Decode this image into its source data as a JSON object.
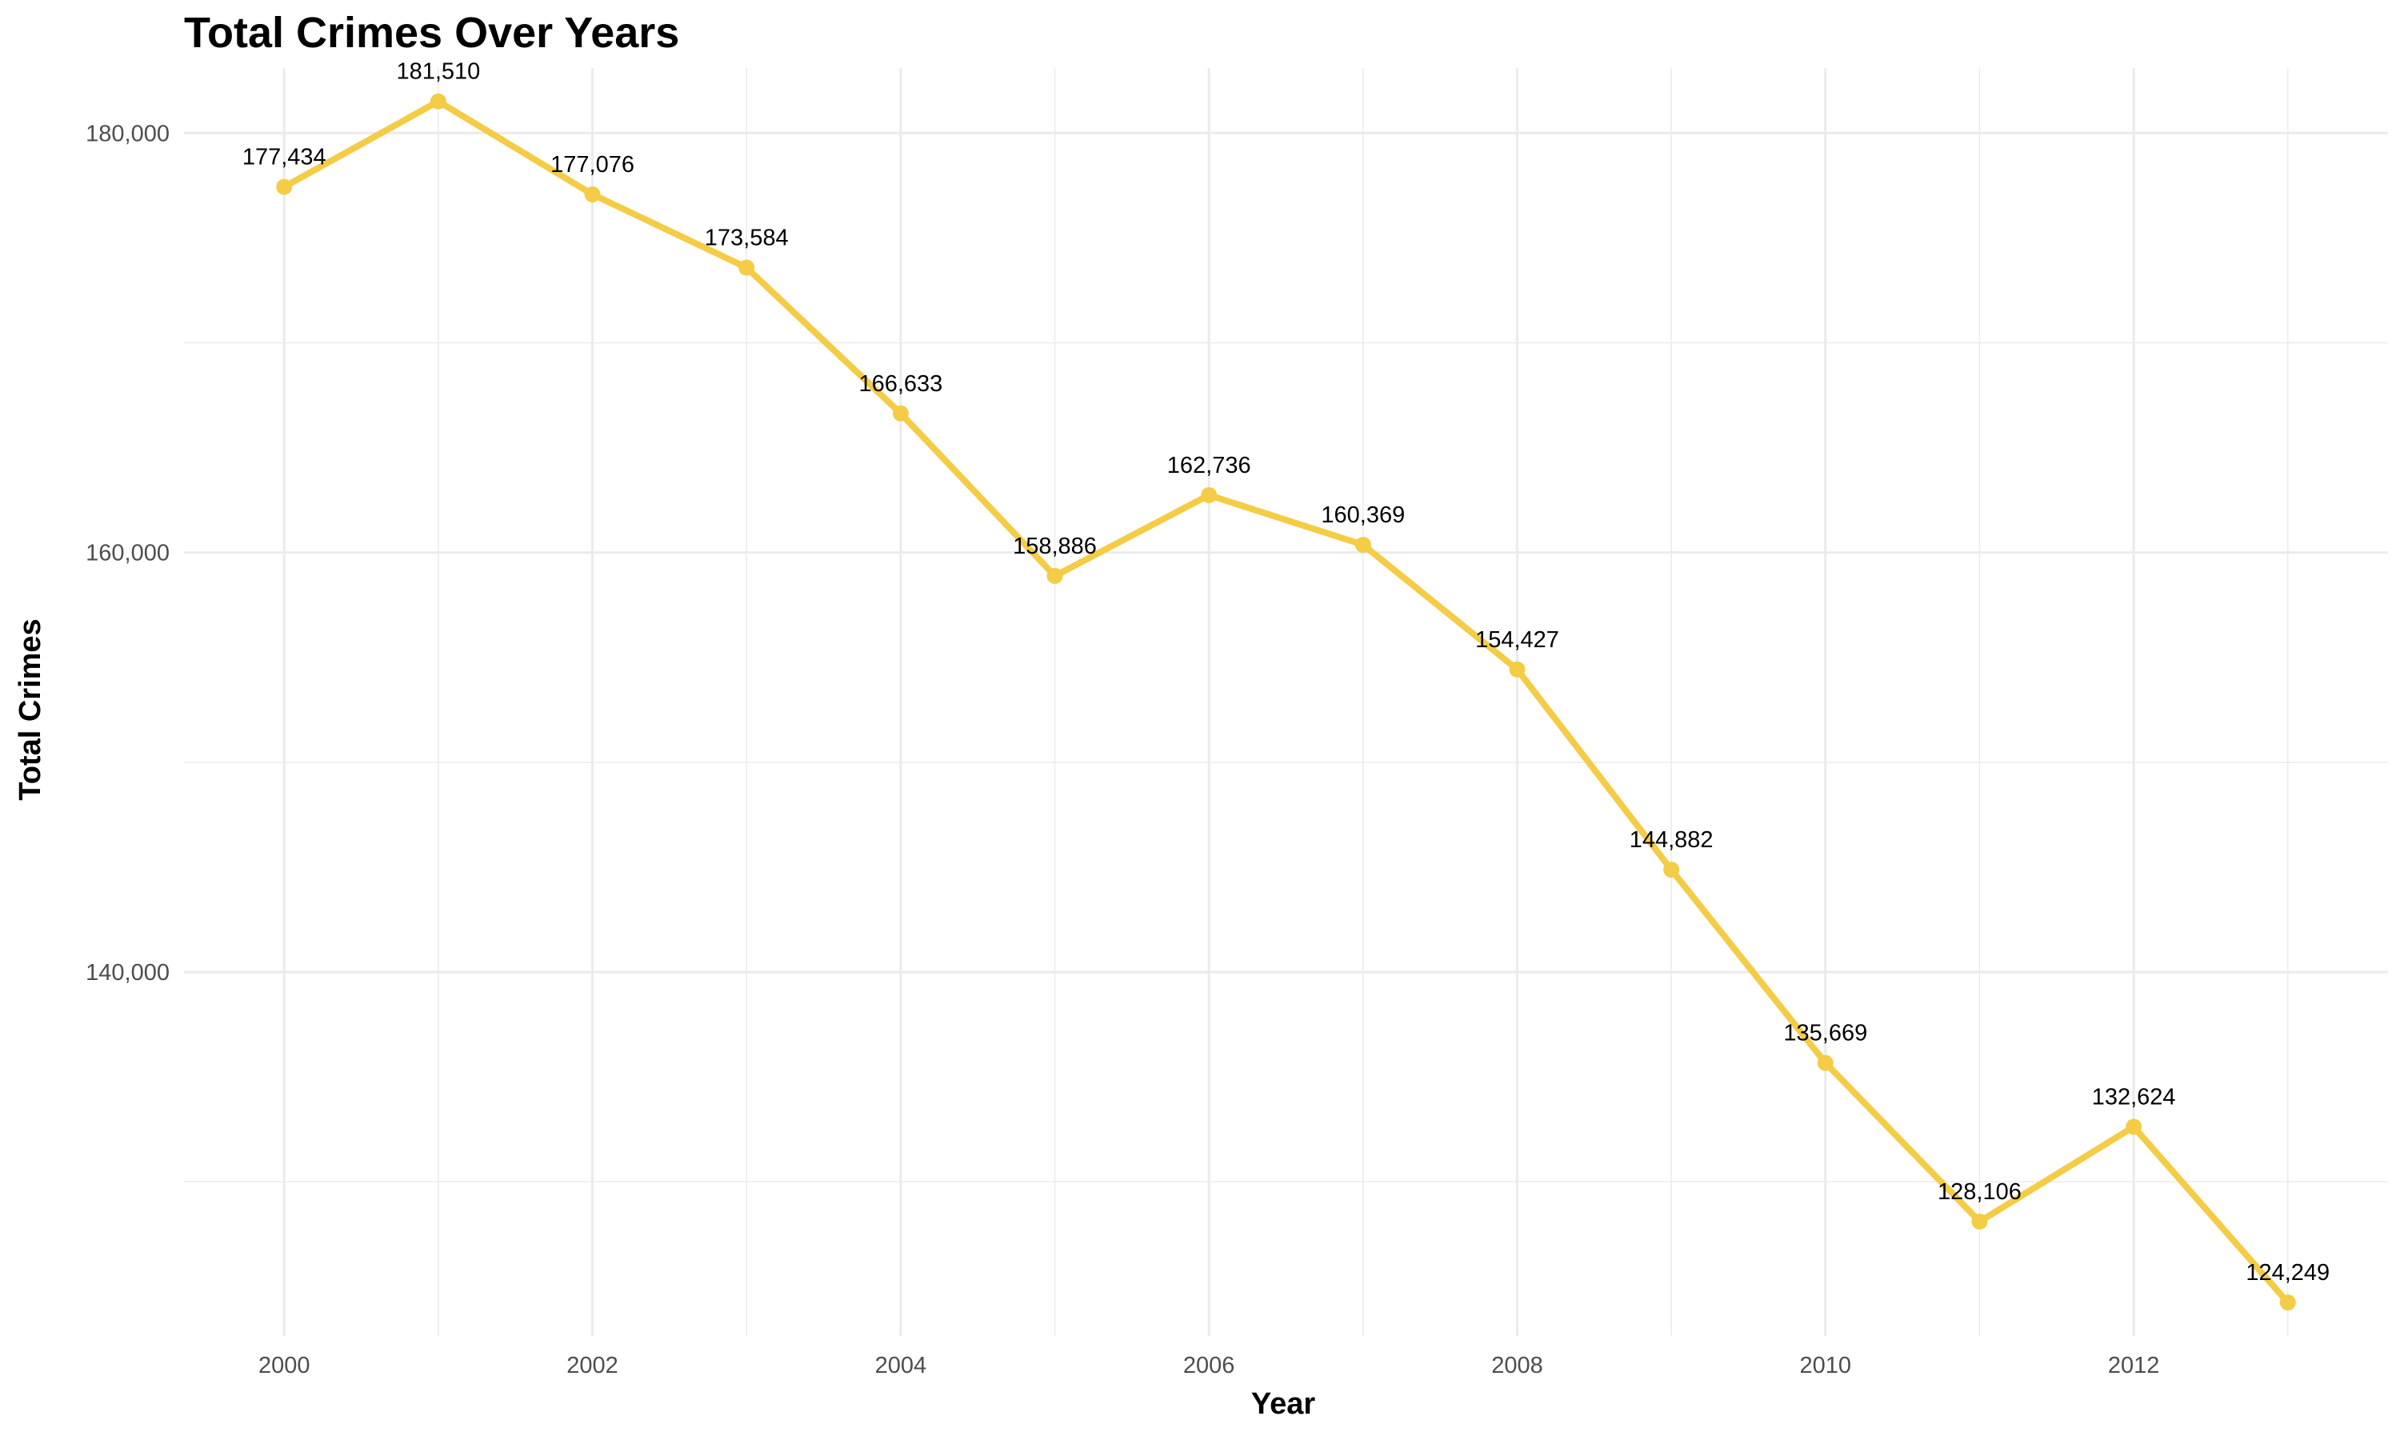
{
  "chart_data": {
    "type": "line",
    "title": "Total Crimes Over Years",
    "xlabel": "Year",
    "ylabel": "Total Crimes",
    "x": [
      2000,
      2001,
      2002,
      2003,
      2004,
      2005,
      2006,
      2007,
      2008,
      2009,
      2010,
      2011,
      2012,
      2013
    ],
    "values": [
      177434,
      181510,
      177076,
      173584,
      166633,
      158886,
      162736,
      160369,
      154427,
      144882,
      135669,
      128106,
      132624,
      124249
    ],
    "data_labels": [
      "177,434",
      "181,510",
      "177,076",
      "173,584",
      "166,633",
      "158,886",
      "162,736",
      "160,369",
      "154,427",
      "144,882",
      "135,669",
      "128,106",
      "132,624",
      "124,249"
    ],
    "x_ticks": [
      "2000",
      "2002",
      "2004",
      "2006",
      "2008",
      "2010",
      "2012"
    ],
    "y_ticks": [
      "140,000",
      "160,000",
      "180,000"
    ],
    "xlim": [
      1999.35,
      2013.65
    ],
    "ylim": [
      122650,
      183100
    ],
    "grid": true,
    "legend": "none",
    "line_color": "#F4CC45",
    "grid_color": "#EBEBEB"
  }
}
